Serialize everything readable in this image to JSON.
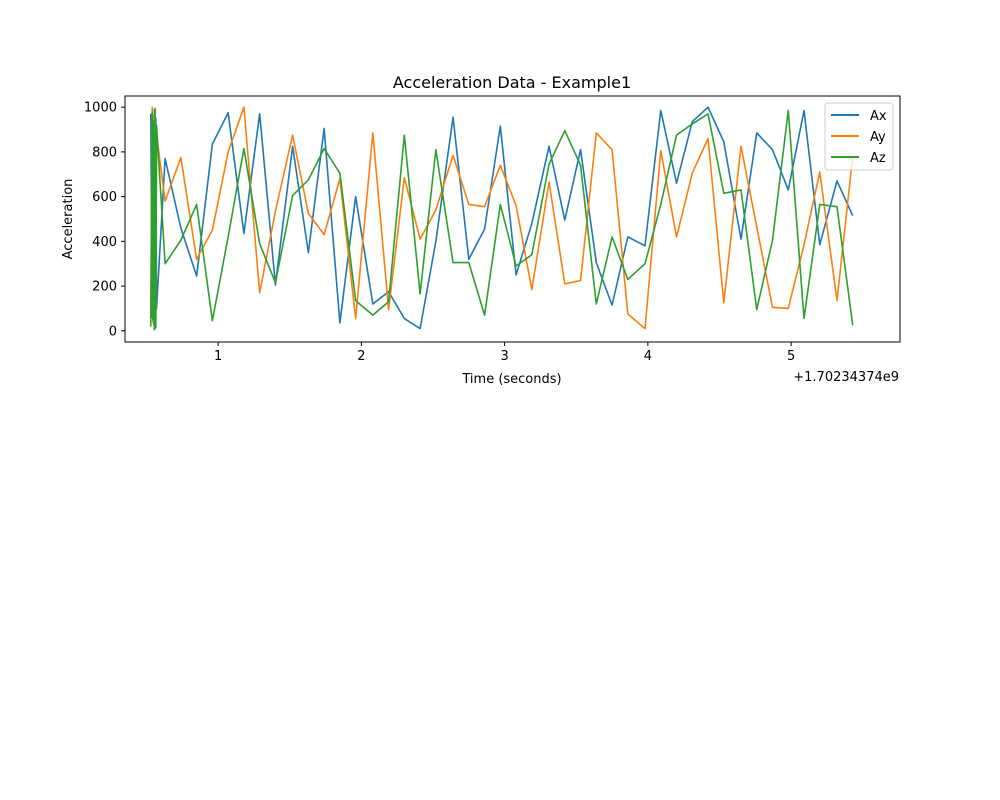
{
  "chart_data": {
    "type": "line",
    "title": "Acceleration Data - Example1",
    "xlabel": "Time (seconds)",
    "ylabel": "Acceleration",
    "x_offset_label": "+1.70234374e9",
    "xlim": [
      0.35,
      5.76
    ],
    "ylim": [
      -50,
      1050
    ],
    "xticks": [
      1,
      2,
      3,
      4,
      5
    ],
    "xtick_labels": [
      "1",
      "2",
      "3",
      "4",
      "5"
    ],
    "yticks": [
      0,
      200,
      400,
      600,
      800,
      1000
    ],
    "ytick_labels": [
      "0",
      "200",
      "400",
      "600",
      "800",
      "1000"
    ],
    "grid": false,
    "legend": "top-right",
    "series": [
      {
        "name": "Ax",
        "color": "#1f77b4",
        "x": [
          0.53,
          0.54,
          0.545,
          0.55,
          0.555,
          0.56,
          0.565,
          0.57,
          0.63,
          0.74,
          0.85,
          0.96,
          1.07,
          1.18,
          1.29,
          1.4,
          1.52,
          1.63,
          1.74,
          1.85,
          1.96,
          2.08,
          2.19,
          2.3,
          2.41,
          2.52,
          2.64,
          2.75,
          2.86,
          2.97,
          3.08,
          3.19,
          3.31,
          3.42,
          3.53,
          3.64,
          3.75,
          3.86,
          3.98,
          4.09,
          4.2,
          4.31,
          4.42,
          4.53,
          4.65,
          4.76,
          4.87,
          4.98,
          5.09,
          5.2,
          5.32,
          5.43
        ],
        "values": [
          970,
          60,
          900,
          30,
          990,
          10,
          950,
          100,
          770,
          460,
          245,
          835,
          975,
          435,
          970,
          205,
          825,
          350,
          905,
          35,
          600,
          120,
          175,
          55,
          10,
          400,
          955,
          320,
          455,
          915,
          250,
          480,
          825,
          495,
          810,
          305,
          115,
          420,
          380,
          985,
          660,
          935,
          1000,
          845,
          410,
          885,
          810,
          630,
          985,
          385,
          670,
          515
        ]
      },
      {
        "name": "Ay",
        "color": "#ff7f0e",
        "x": [
          0.53,
          0.54,
          0.545,
          0.55,
          0.555,
          0.56,
          0.565,
          0.57,
          0.63,
          0.74,
          0.85,
          0.96,
          1.07,
          1.18,
          1.29,
          1.4,
          1.52,
          1.63,
          1.74,
          1.85,
          1.96,
          2.08,
          2.19,
          2.3,
          2.41,
          2.52,
          2.64,
          2.75,
          2.86,
          2.97,
          3.08,
          3.19,
          3.31,
          3.42,
          3.53,
          3.64,
          3.75,
          3.86,
          3.98,
          4.09,
          4.2,
          4.31,
          4.42,
          4.53,
          4.65,
          4.76,
          4.87,
          4.98,
          5.09,
          5.2,
          5.32,
          5.43
        ],
        "values": [
          80,
          1000,
          40,
          960,
          20,
          995,
          60,
          880,
          580,
          775,
          320,
          450,
          800,
          1000,
          170,
          535,
          875,
          525,
          430,
          680,
          55,
          885,
          95,
          685,
          410,
          540,
          785,
          565,
          555,
          740,
          560,
          185,
          665,
          210,
          225,
          885,
          810,
          75,
          10,
          805,
          420,
          705,
          860,
          125,
          825,
          465,
          105,
          100,
          385,
          710,
          135,
          780
        ]
      },
      {
        "name": "Az",
        "color": "#2ca02c",
        "x": [
          0.53,
          0.54,
          0.545,
          0.55,
          0.555,
          0.56,
          0.565,
          0.57,
          0.63,
          0.74,
          0.85,
          0.96,
          1.07,
          1.18,
          1.29,
          1.4,
          1.52,
          1.63,
          1.74,
          1.85,
          1.96,
          2.08,
          2.19,
          2.3,
          2.41,
          2.52,
          2.64,
          2.75,
          2.86,
          2.97,
          3.08,
          3.19,
          3.31,
          3.42,
          3.53,
          3.64,
          3.75,
          3.86,
          3.98,
          4.09,
          4.2,
          4.31,
          4.42,
          4.53,
          4.65,
          4.76,
          4.87,
          4.98,
          5.09,
          5.2,
          5.32,
          5.43
        ],
        "values": [
          20,
          980,
          50,
          940,
          5,
          990,
          15,
          920,
          300,
          405,
          565,
          45,
          420,
          815,
          390,
          215,
          605,
          675,
          815,
          705,
          135,
          70,
          130,
          875,
          165,
          810,
          305,
          305,
          70,
          565,
          290,
          340,
          745,
          895,
          740,
          120,
          420,
          230,
          300,
          565,
          875,
          925,
          970,
          615,
          630,
          95,
          405,
          985,
          55,
          565,
          555,
          25
        ]
      }
    ]
  }
}
